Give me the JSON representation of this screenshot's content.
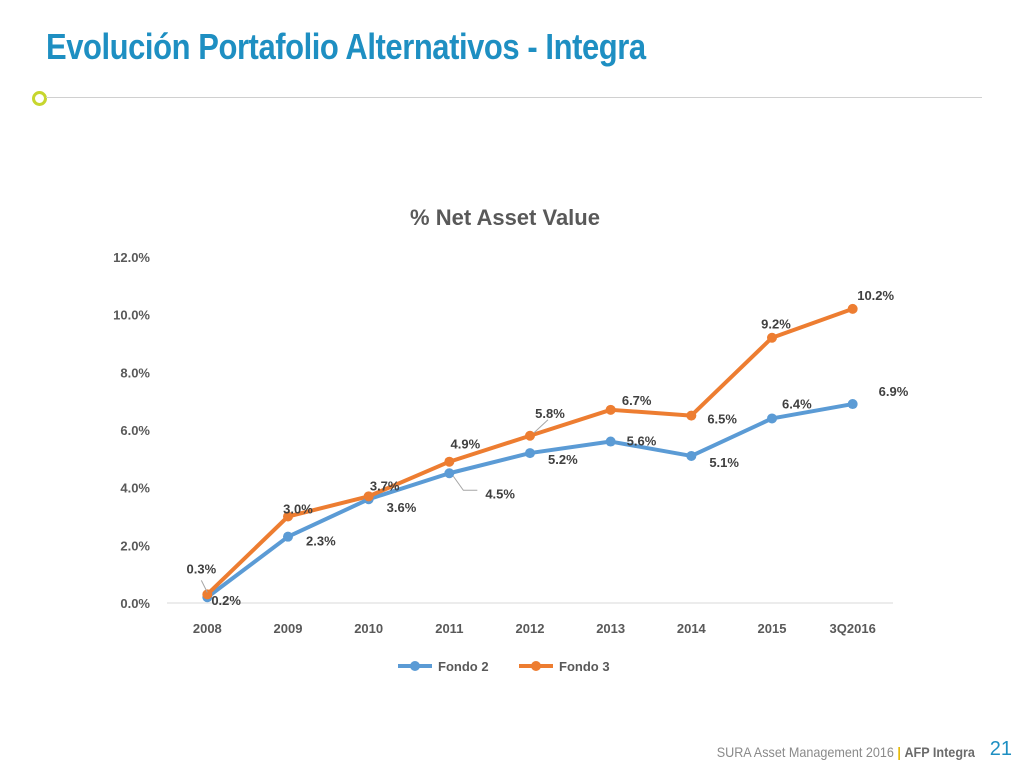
{
  "slide": {
    "title": "Evolución Portafolio Alternativos - Integra"
  },
  "footer": {
    "company": "SURA Asset Management 2016",
    "separator": "|",
    "brand": "AFP Integra",
    "page_number": "21"
  },
  "colors": {
    "title": "#1e8fc2",
    "bullet": "#c7d62e",
    "fondo2": "#5b9bd5",
    "fondo3": "#ed7d31"
  },
  "chart_data": {
    "type": "line",
    "title": "% Net Asset Value",
    "xlabel": "",
    "ylabel": "",
    "categories": [
      "2008",
      "2009",
      "2010",
      "2011",
      "2012",
      "2013",
      "2014",
      "2015",
      "3Q2016"
    ],
    "ylim": [
      0,
      12
    ],
    "yticks": [
      "0.0%",
      "2.0%",
      "4.0%",
      "6.0%",
      "8.0%",
      "10.0%",
      "12.0%"
    ],
    "grid": false,
    "legend_position": "bottom",
    "series": [
      {
        "name": "Fondo 2",
        "values": [
          0.2,
          2.3,
          3.6,
          4.5,
          5.2,
          5.6,
          5.1,
          6.4,
          6.9
        ],
        "labels": [
          "0.2%",
          "2.3%",
          "3.6%",
          "4.5%",
          "5.2%",
          "5.6%",
          "5.1%",
          "6.4%",
          "6.9%"
        ]
      },
      {
        "name": "Fondo 3",
        "values": [
          0.3,
          3.0,
          3.7,
          4.9,
          5.8,
          6.7,
          6.5,
          9.2,
          10.2
        ],
        "labels": [
          "0.3%",
          "3.0%",
          "3.7%",
          "4.9%",
          "5.8%",
          "6.7%",
          "6.5%",
          "9.2%",
          "10.2%"
        ]
      }
    ]
  }
}
